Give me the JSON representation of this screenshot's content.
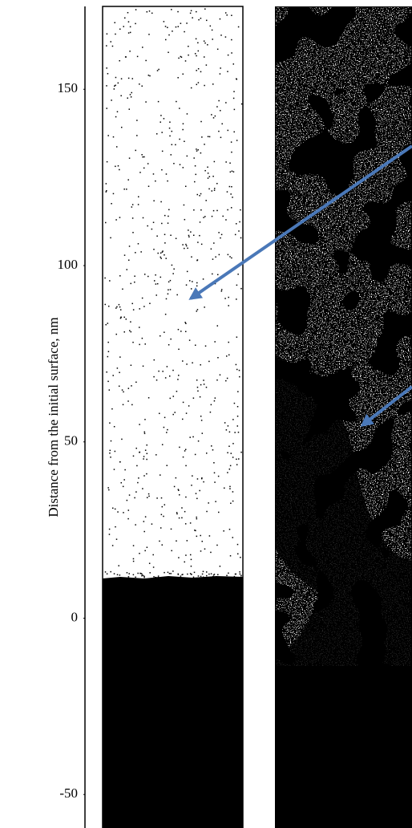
{
  "chart_data": {
    "type": "image",
    "ylabel": "Distance from the initial surface, nm",
    "ylim": [
      -59.5,
      173.5
    ],
    "yticks": [
      150,
      100,
      50,
      0,
      -50
    ]
  }
}
